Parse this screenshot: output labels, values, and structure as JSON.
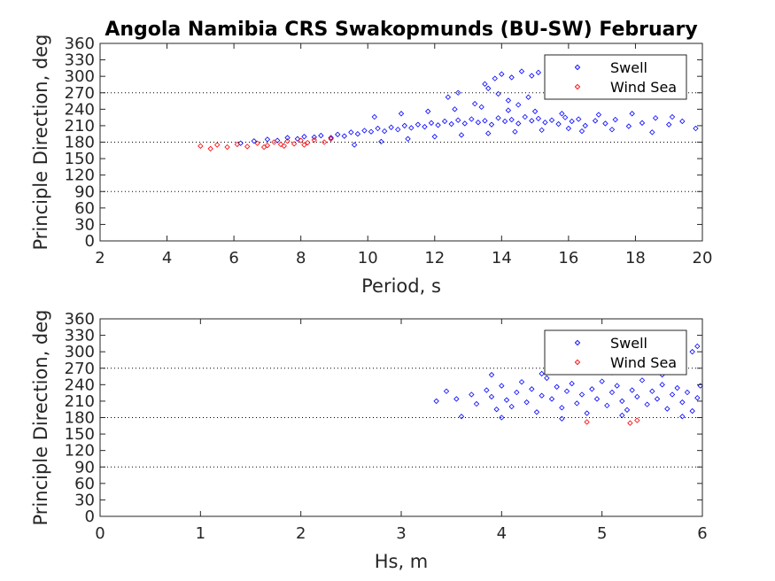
{
  "title": "Angola Namibia CRS Swakopmunds (BU-SW) February",
  "colors": {
    "swell": "#0000ff",
    "wind_sea": "#ff0000",
    "axis": "#262626"
  },
  "chart_data": [
    {
      "type": "scatter",
      "xlabel": "Period, s",
      "ylabel": "Principle Direction, deg",
      "xlim": [
        2,
        20
      ],
      "ylim": [
        0,
        360
      ],
      "xticks": [
        2,
        4,
        6,
        8,
        10,
        12,
        14,
        16,
        18,
        20
      ],
      "yticks": [
        0,
        30,
        60,
        90,
        120,
        150,
        180,
        210,
        240,
        270,
        300,
        330,
        360
      ],
      "reference_lines": [
        90,
        180,
        270
      ],
      "legend": {
        "position": "top-right",
        "entries": [
          "Swell",
          "Wind Sea"
        ]
      },
      "series": [
        {
          "name": "Swell",
          "color": "#0000ff",
          "points": [
            [
              6.2,
              178
            ],
            [
              6.6,
              182
            ],
            [
              7.0,
              185
            ],
            [
              7.3,
              183
            ],
            [
              7.6,
              188
            ],
            [
              7.9,
              186
            ],
            [
              8.1,
              190
            ],
            [
              8.4,
              189
            ],
            [
              8.6,
              192
            ],
            [
              8.9,
              188
            ],
            [
              9.1,
              194
            ],
            [
              9.3,
              191
            ],
            [
              9.5,
              198
            ],
            [
              9.7,
              195
            ],
            [
              9.9,
              201
            ],
            [
              10.1,
              199
            ],
            [
              10.3,
              205
            ],
            [
              10.5,
              200
            ],
            [
              10.7,
              207
            ],
            [
              10.9,
              203
            ],
            [
              11.1,
              210
            ],
            [
              11.3,
              206
            ],
            [
              11.5,
              212
            ],
            [
              11.7,
              208
            ],
            [
              11.9,
              215
            ],
            [
              12.1,
              211
            ],
            [
              12.3,
              218
            ],
            [
              12.5,
              213
            ],
            [
              12.7,
              220
            ],
            [
              12.9,
              214
            ],
            [
              13.1,
              222
            ],
            [
              13.3,
              216
            ],
            [
              13.5,
              219
            ],
            [
              13.7,
              212
            ],
            [
              13.9,
              224
            ],
            [
              14.1,
              218
            ],
            [
              14.3,
              221
            ],
            [
              14.5,
              214
            ],
            [
              14.7,
              226
            ],
            [
              14.9,
              219
            ],
            [
              15.1,
              223
            ],
            [
              15.3,
              216
            ],
            [
              15.5,
              220
            ],
            [
              15.7,
              213
            ],
            [
              15.9,
              225
            ],
            [
              16.1,
              218
            ],
            [
              16.3,
              222
            ],
            [
              16.5,
              210
            ],
            [
              16.8,
              219
            ],
            [
              17.1,
              214
            ],
            [
              17.4,
              221
            ],
            [
              17.8,
              209
            ],
            [
              18.2,
              215
            ],
            [
              18.6,
              224
            ],
            [
              19.0,
              212
            ],
            [
              19.4,
              218
            ],
            [
              19.8,
              205
            ],
            [
              9.6,
              175
            ],
            [
              10.4,
              181
            ],
            [
              11.2,
              186
            ],
            [
              12.0,
              190
            ],
            [
              12.8,
              193
            ],
            [
              13.6,
              196
            ],
            [
              14.4,
              199
            ],
            [
              15.2,
              202
            ],
            [
              16.0,
              205
            ],
            [
              10.2,
              226
            ],
            [
              11.0,
              232
            ],
            [
              11.8,
              236
            ],
            [
              12.6,
              240
            ],
            [
              13.4,
              244
            ],
            [
              14.2,
              238
            ],
            [
              15.0,
              236
            ],
            [
              15.8,
              232
            ],
            [
              12.4,
              262
            ],
            [
              12.7,
              270
            ],
            [
              13.2,
              250
            ],
            [
              13.5,
              286
            ],
            [
              13.8,
              296
            ],
            [
              14.0,
              304
            ],
            [
              14.3,
              298
            ],
            [
              14.6,
              309
            ],
            [
              14.9,
              301
            ],
            [
              15.1,
              307
            ],
            [
              15.4,
              294
            ],
            [
              15.7,
              306
            ],
            [
              13.6,
              278
            ],
            [
              13.9,
              268
            ],
            [
              14.2,
              256
            ],
            [
              14.5,
              248
            ],
            [
              14.8,
              262
            ],
            [
              15.5,
              284
            ],
            [
              16.4,
              200
            ],
            [
              16.9,
              230
            ],
            [
              17.3,
              203
            ],
            [
              17.9,
              232
            ],
            [
              18.5,
              198
            ],
            [
              19.1,
              226
            ]
          ]
        },
        {
          "name": "Wind Sea",
          "color": "#ff0000",
          "points": [
            [
              5.0,
              173
            ],
            [
              5.3,
              168
            ],
            [
              5.5,
              175
            ],
            [
              5.8,
              171
            ],
            [
              6.1,
              176
            ],
            [
              6.4,
              172
            ],
            [
              6.7,
              178
            ],
            [
              7.0,
              174
            ],
            [
              7.2,
              180
            ],
            [
              7.4,
              176
            ],
            [
              7.6,
              182
            ],
            [
              7.8,
              177
            ],
            [
              8.0,
              183
            ],
            [
              8.2,
              179
            ],
            [
              8.4,
              184
            ],
            [
              8.7,
              180
            ],
            [
              8.9,
              186
            ],
            [
              6.9,
              171
            ],
            [
              7.5,
              173
            ],
            [
              8.1,
              175
            ]
          ]
        }
      ]
    },
    {
      "type": "scatter",
      "xlabel": "Hs, m",
      "ylabel": "Principle Direction, deg",
      "xlim": [
        0,
        6
      ],
      "ylim": [
        0,
        360
      ],
      "xticks": [
        0,
        1,
        2,
        3,
        4,
        5,
        6
      ],
      "yticks": [
        0,
        30,
        60,
        90,
        120,
        150,
        180,
        210,
        240,
        270,
        300,
        330,
        360
      ],
      "reference_lines": [
        90,
        180,
        270
      ],
      "legend": {
        "position": "top-right",
        "entries": [
          "Swell",
          "Wind Sea"
        ]
      },
      "series": [
        {
          "name": "Swell",
          "color": "#0000ff",
          "points": [
            [
              3.35,
              210
            ],
            [
              3.45,
              228
            ],
            [
              3.55,
              214
            ],
            [
              3.6,
              182
            ],
            [
              3.7,
              222
            ],
            [
              3.75,
              205
            ],
            [
              3.85,
              230
            ],
            [
              3.9,
              218
            ],
            [
              3.95,
              195
            ],
            [
              4.0,
              238
            ],
            [
              4.05,
              212
            ],
            [
              4.1,
              200
            ],
            [
              4.15,
              226
            ],
            [
              4.2,
              245
            ],
            [
              4.25,
              208
            ],
            [
              4.3,
              232
            ],
            [
              4.35,
              190
            ],
            [
              4.4,
              220
            ],
            [
              4.45,
              252
            ],
            [
              4.5,
              214
            ],
            [
              4.55,
              236
            ],
            [
              4.6,
              198
            ],
            [
              4.65,
              228
            ],
            [
              4.7,
              242
            ],
            [
              4.75,
              206
            ],
            [
              4.8,
              222
            ],
            [
              4.85,
              188
            ],
            [
              4.9,
              232
            ],
            [
              4.95,
              214
            ],
            [
              5.0,
              246
            ],
            [
              5.05,
              202
            ],
            [
              5.1,
              226
            ],
            [
              5.15,
              238
            ],
            [
              5.2,
              210
            ],
            [
              5.25,
              194
            ],
            [
              5.3,
              230
            ],
            [
              5.35,
              218
            ],
            [
              5.4,
              248
            ],
            [
              5.45,
              204
            ],
            [
              5.5,
              228
            ],
            [
              5.55,
              214
            ],
            [
              5.6,
              240
            ],
            [
              5.65,
              196
            ],
            [
              5.7,
              222
            ],
            [
              5.75,
              234
            ],
            [
              5.8,
              208
            ],
            [
              5.85,
              226
            ],
            [
              5.9,
              192
            ],
            [
              5.95,
              216
            ],
            [
              5.98,
              238
            ],
            [
              3.9,
              258
            ],
            [
              4.4,
              260
            ],
            [
              5.1,
              262
            ],
            [
              5.6,
              258
            ],
            [
              5.9,
              300
            ],
            [
              5.95,
              310
            ],
            [
              4.0,
              180
            ],
            [
              4.6,
              178
            ],
            [
              5.2,
              184
            ],
            [
              5.8,
              182
            ]
          ]
        },
        {
          "name": "Wind Sea",
          "color": "#ff0000",
          "points": [
            [
              4.85,
              172
            ],
            [
              5.28,
              170
            ],
            [
              5.35,
              175
            ]
          ]
        }
      ]
    }
  ]
}
